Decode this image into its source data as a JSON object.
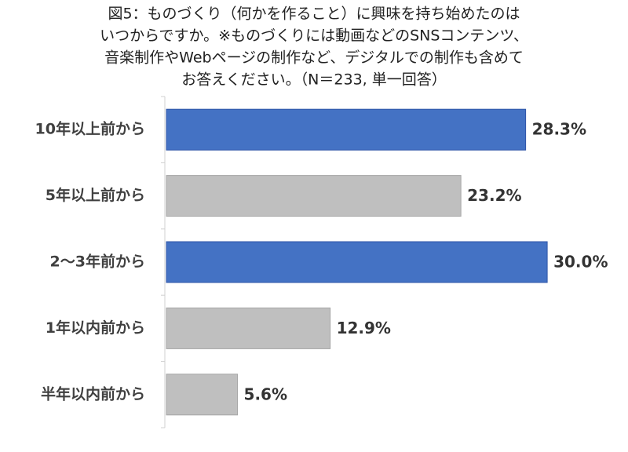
{
  "chart_data": {
    "type": "bar",
    "orientation": "horizontal",
    "title": [
      "図5：ものづくり（何かを作ること）に興味を持ち始めたのは",
      "いつからですか。※ものづくりには動画などのSNSコンテンツ、",
      "音楽制作やWebページの制作など、デジタルでの制作も含めて",
      "お答えください。（N＝233, 単一回答）"
    ],
    "categories": [
      "10年以上前から",
      "5年以上前から",
      "2～3年前から",
      "1年以内前から",
      "半年以内前から"
    ],
    "values": [
      28.3,
      23.2,
      30.0,
      12.9,
      5.6
    ],
    "value_labels": [
      "28.3%",
      "23.2%",
      "30.0%",
      "12.9%",
      "5.6%"
    ],
    "colors": [
      "#4472c4",
      "#bfbfbf",
      "#4472c4",
      "#bfbfbf",
      "#bfbfbf"
    ]
  }
}
